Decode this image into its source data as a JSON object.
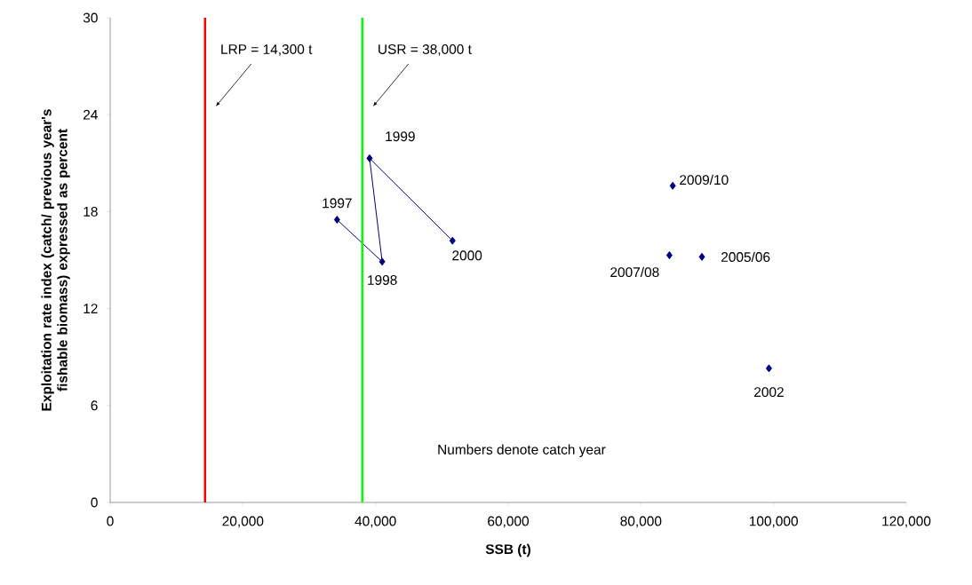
{
  "chart_data": {
    "type": "scatter",
    "xlabel": "SSB (t)",
    "ylabel": "Exploitation rate index (catch/ previous year's fishable biomass) expressed as percent",
    "xlim": [
      0,
      120000
    ],
    "ylim": [
      0,
      30
    ],
    "xticks": [
      0,
      {
        "value": 20000,
        "label": "20,000"
      },
      {
        "value": 40000,
        "label": "40,000"
      },
      {
        "value": 60000,
        "label": "60,000"
      },
      {
        "value": 80000,
        "label": "80,000"
      },
      {
        "value": 100000,
        "label": "100,000"
      },
      {
        "value": 120000,
        "label": "120,000"
      }
    ],
    "yticks": [
      0,
      6,
      12,
      18,
      24,
      30
    ],
    "grid": false,
    "marker": "diamond",
    "line_style": "solid",
    "series": [
      {
        "type": "line",
        "color": "#000080",
        "x": [
          34200,
          41000,
          39100,
          51600
        ],
        "values": [
          17.5,
          14.9,
          21.3,
          16.2
        ]
      },
      {
        "color": "#000080",
        "x": [
          99300,
          89200,
          84300,
          84800
        ],
        "values": [
          8.3,
          15.2,
          15.3,
          19.6
        ]
      }
    ],
    "ref_lines": [
      {
        "axis": "x",
        "value": 14300,
        "label": "LRP = 14,300 t",
        "color": "#ff0000"
      },
      {
        "axis": "x",
        "value": 38000,
        "label": "USR = 38,000 t",
        "color": "#00ff00"
      }
    ],
    "annotations": [
      {
        "text": "1997",
        "x": 34200,
        "y": 17.5
      },
      {
        "text": "1998",
        "x": 41000,
        "y": 14.9
      },
      {
        "text": "1999",
        "x": 39100,
        "y": 21.3
      },
      {
        "text": "2000",
        "x": 51600,
        "y": 16.2
      },
      {
        "text": "2002",
        "x": 99300,
        "y": 8.3
      },
      {
        "text": "2005/06",
        "x": 89200,
        "y": 15.2
      },
      {
        "text": "2007/08",
        "x": 84300,
        "y": 15.3
      },
      {
        "text": "2009/10",
        "x": 84800,
        "y": 19.6
      },
      "Numbers denote catch year"
    ]
  }
}
